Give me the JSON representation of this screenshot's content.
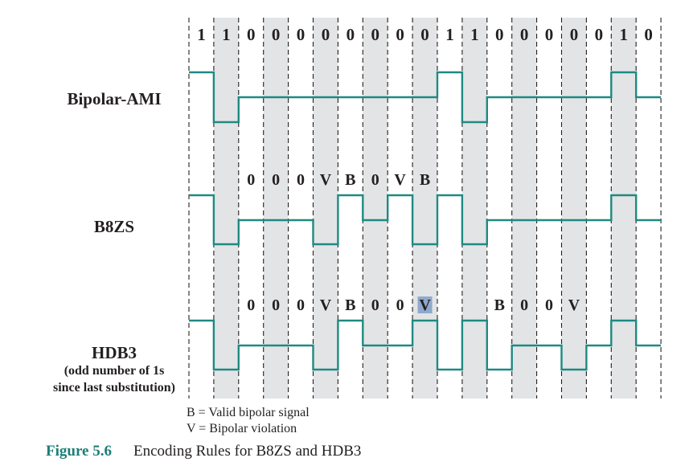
{
  "bits": [
    "1",
    "1",
    "0",
    "0",
    "0",
    "0",
    "0",
    "0",
    "0",
    "0",
    "1",
    "1",
    "0",
    "0",
    "0",
    "0",
    "0",
    "1",
    "0"
  ],
  "signals": [
    {
      "name": "Bipolar-AMI",
      "sublabels": [],
      "levels": [
        1,
        -1,
        0,
        0,
        0,
        0,
        0,
        0,
        0,
        0,
        1,
        -1,
        0,
        0,
        0,
        0,
        0,
        1,
        0
      ],
      "codes": []
    },
    {
      "name": "B8ZS",
      "sublabels": [],
      "levels": [
        1,
        -1,
        0,
        0,
        0,
        -1,
        1,
        0,
        1,
        -1,
        1,
        -1,
        0,
        0,
        0,
        0,
        0,
        1,
        0
      ],
      "codes": [
        {
          "slot": 2,
          "text": "0"
        },
        {
          "slot": 3,
          "text": "0"
        },
        {
          "slot": 4,
          "text": "0"
        },
        {
          "slot": 5,
          "text": "V"
        },
        {
          "slot": 6,
          "text": "B"
        },
        {
          "slot": 7,
          "text": "0"
        },
        {
          "slot": 8,
          "text": "V"
        },
        {
          "slot": 9,
          "text": "B"
        }
      ]
    },
    {
      "name": "HDB3",
      "sublabels": [
        "(odd number of 1s",
        "since last substitution)"
      ],
      "levels": [
        1,
        -1,
        0,
        0,
        0,
        -1,
        1,
        0,
        0,
        1,
        -1,
        1,
        -1,
        0,
        0,
        -1,
        0,
        1,
        0
      ],
      "codes": [
        {
          "slot": 2,
          "text": "0"
        },
        {
          "slot": 3,
          "text": "0"
        },
        {
          "slot": 4,
          "text": "0"
        },
        {
          "slot": 5,
          "text": "V"
        },
        {
          "slot": 6,
          "text": "B"
        },
        {
          "slot": 7,
          "text": "0"
        },
        {
          "slot": 8,
          "text": "0"
        },
        {
          "slot": 9,
          "text": "V",
          "highlight": true
        },
        {
          "slot": 12,
          "text": "B"
        },
        {
          "slot": 13,
          "text": "0"
        },
        {
          "slot": 14,
          "text": "0"
        },
        {
          "slot": 15,
          "text": "V"
        }
      ]
    }
  ],
  "legend": [
    "B = Valid bipolar signal",
    "V = Bipolar violation"
  ],
  "caption": {
    "number": "Figure 5.6",
    "title": "Encoding Rules for B8ZS and HDB3"
  },
  "colors": {
    "signal": "#1e8a82",
    "shade": "#e3e4e6",
    "grid": "#231f20",
    "text": "#231f20",
    "caption_number": "#1d7d77",
    "highlight": "#8fa9cc"
  }
}
